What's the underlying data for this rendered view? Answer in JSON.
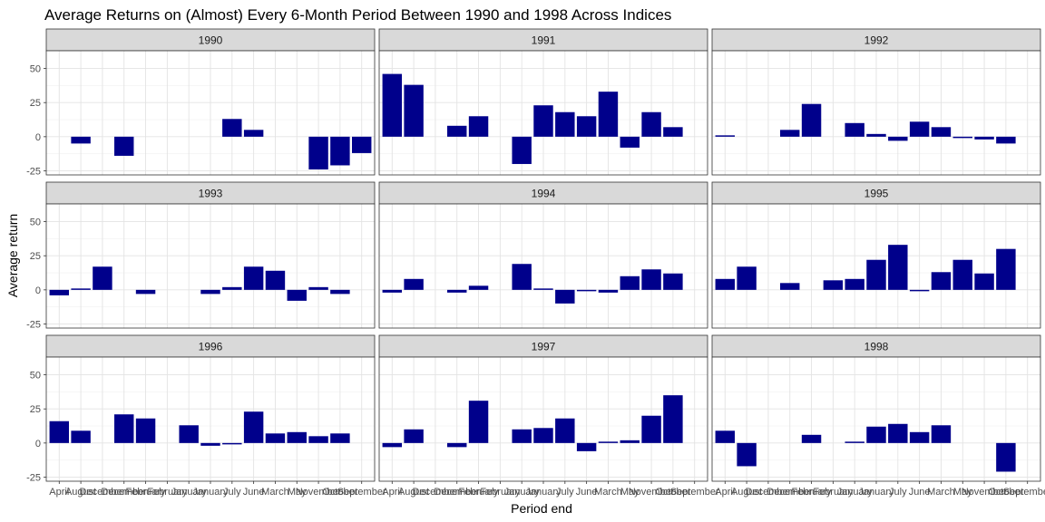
{
  "chart_data": {
    "type": "bar",
    "title": "Average Returns on (Almost) Every 6-Month Period Between 1990 and 1998 Across Indices",
    "xlabel": "Period end",
    "ylabel": "Average return",
    "ylim": [
      -28,
      63
    ],
    "yticks": [
      -25,
      0,
      25,
      50
    ],
    "ytick_labels": [
      "-25",
      "0",
      "25",
      "50"
    ],
    "categories": [
      "April",
      "August",
      "December",
      "December",
      "February",
      "February",
      "January",
      "January",
      "July",
      "June",
      "March",
      "May",
      "November",
      "October",
      "September"
    ],
    "grid": true,
    "bar_color": "#00008B",
    "panels": [
      {
        "label": "1990",
        "values": [
          null,
          -5,
          null,
          -14,
          null,
          null,
          null,
          null,
          13,
          5,
          null,
          null,
          -24,
          -21,
          -12
        ]
      },
      {
        "label": "1991",
        "values": [
          46,
          38,
          null,
          8,
          15,
          null,
          -20,
          23,
          18,
          15,
          33,
          -8,
          18,
          7,
          null
        ]
      },
      {
        "label": "1992",
        "values": [
          1,
          null,
          null,
          5,
          24,
          null,
          10,
          2,
          -3,
          11,
          7,
          -1,
          -2,
          -5,
          null
        ]
      },
      {
        "label": "1993",
        "values": [
          -4,
          1,
          17,
          null,
          -3,
          null,
          null,
          -3,
          2,
          17,
          14,
          -8,
          2,
          -3,
          null
        ]
      },
      {
        "label": "1994",
        "values": [
          -2,
          8,
          null,
          -2,
          3,
          null,
          19,
          1,
          -10,
          -1,
          -2,
          10,
          15,
          12,
          null
        ]
      },
      {
        "label": "1995",
        "values": [
          8,
          17,
          null,
          5,
          null,
          7,
          8,
          22,
          33,
          -1,
          13,
          22,
          12,
          30,
          null
        ]
      },
      {
        "label": "1996",
        "values": [
          16,
          9,
          null,
          21,
          18,
          null,
          13,
          -2,
          -1,
          23,
          7,
          8,
          5,
          7,
          null
        ]
      },
      {
        "label": "1997",
        "values": [
          -3,
          10,
          null,
          -3,
          31,
          null,
          10,
          11,
          18,
          -6,
          1,
          2,
          20,
          35,
          null
        ]
      },
      {
        "label": "1998",
        "values": [
          9,
          -17,
          null,
          null,
          6,
          null,
          1,
          12,
          14,
          8,
          13,
          null,
          null,
          -21,
          null
        ]
      }
    ]
  }
}
